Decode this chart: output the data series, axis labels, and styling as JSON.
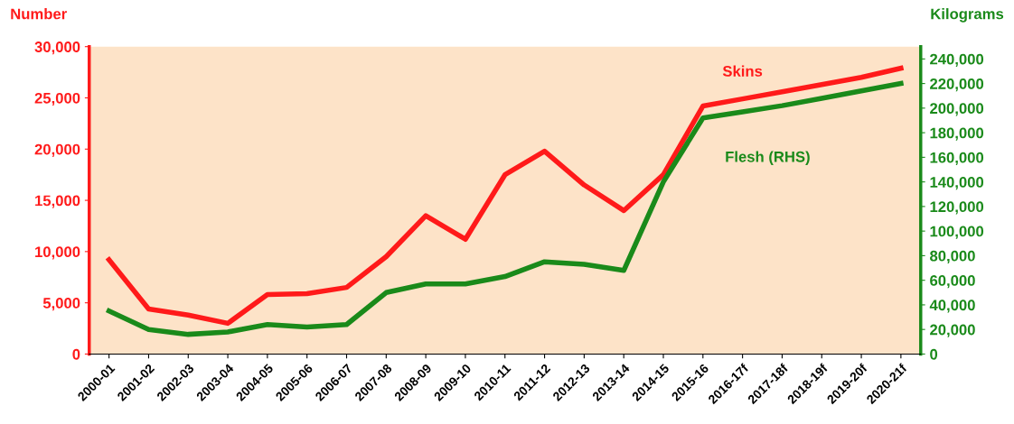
{
  "chart_data": {
    "type": "line",
    "ylabel": "Number",
    "y2label": "Kilograms",
    "categories": [
      "2000-01",
      "2001-02",
      "2002-03",
      "2003-04",
      "2004-05",
      "2005-06",
      "2006-07",
      "2007-08",
      "2008-09",
      "2009-10",
      "2010-11",
      "2011-12",
      "2012-13",
      "2013-14",
      "2014-15",
      "2015-16",
      "2016-17f",
      "2017-18f",
      "2018-19f",
      "2019-20f",
      "2020-21f"
    ],
    "series": [
      {
        "name": "Skins",
        "color": "#ff1a1a",
        "values": [
          9200,
          4400,
          3800,
          3000,
          5800,
          5900,
          6500,
          9500,
          13500,
          11200,
          17500,
          19800,
          16500,
          14000,
          17500,
          24200,
          24900,
          25600,
          26300,
          27000,
          27900
        ]
      },
      {
        "name": "Flesh (RHS)",
        "color": "#1a8a1a",
        "axis": "y2",
        "values": [
          35000,
          20000,
          16000,
          18000,
          24000,
          22000,
          24000,
          50000,
          57000,
          57000,
          63000,
          75000,
          73000,
          68000,
          140000,
          192000,
          197000,
          202000,
          208000,
          214000,
          220000
        ]
      }
    ],
    "ylim": [
      0,
      30000
    ],
    "yticks": [
      {
        "value": 0,
        "label": "0"
      },
      {
        "value": 5000,
        "label": "5,000"
      },
      {
        "value": 10000,
        "label": "10,000"
      },
      {
        "value": 15000,
        "label": "15,000"
      },
      {
        "value": 20000,
        "label": "20,000"
      },
      {
        "value": 25000,
        "label": "25,000"
      },
      {
        "value": 30000,
        "label": "30,000"
      }
    ],
    "y2lim": [
      0,
      250000
    ],
    "y2ticks": [
      {
        "value": 0,
        "label": "0"
      },
      {
        "value": 20000,
        "label": "20,000"
      },
      {
        "value": 40000,
        "label": "40,000"
      },
      {
        "value": 60000,
        "label": "60,000"
      },
      {
        "value": 80000,
        "label": "80,000"
      },
      {
        "value": 100000,
        "label": "100,000"
      },
      {
        "value": 120000,
        "label": "120,000"
      },
      {
        "value": 140000,
        "label": "140,000"
      },
      {
        "value": 160000,
        "label": "160,000"
      },
      {
        "value": 180000,
        "label": "180,000"
      },
      {
        "value": 200000,
        "label": "200,000"
      },
      {
        "value": 220000,
        "label": "220,000"
      },
      {
        "value": 240000,
        "label": "240,000"
      }
    ],
    "grid": false,
    "legend": false,
    "marker": "none",
    "line_style": "solid"
  }
}
